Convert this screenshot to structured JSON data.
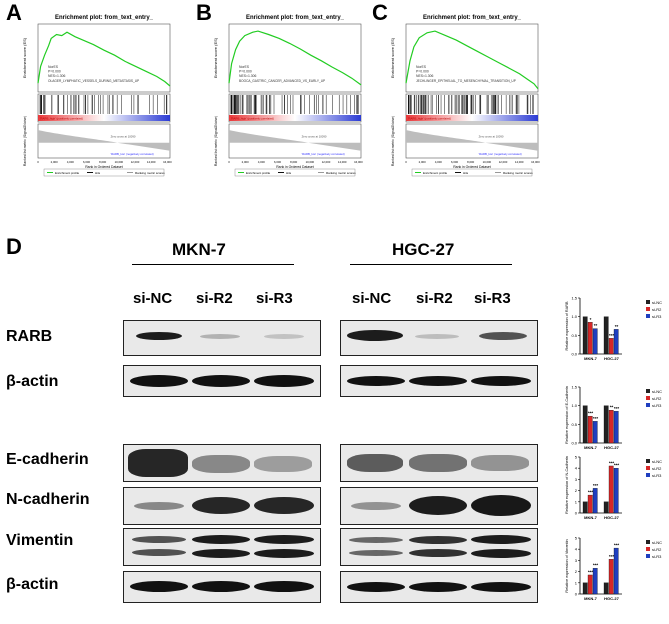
{
  "panels": {
    "A": {
      "letter": "A",
      "title": "Enrichment plot: from_text_entry_",
      "ylabel_top": "Enrichment score (ES)",
      "ylabel_bottom": "Ranked list metric (Signal2Noise)",
      "xlabel": "Rank in Ordered Dataset",
      "legend": [
        "Enrichment profile",
        "Hits",
        "Ranking metric scores"
      ],
      "stats": [
        "NorES",
        "P=0.000",
        "NES=1.306"
      ],
      "geneset": "OLAGER_LYMPHATIC_VESSELS_DURING_METASTASIS_UP",
      "pos_label": "'RARB_high' (positively correlated)",
      "neg_label": "'RARB_low' (negatively correlated)",
      "zero_label": "Zero cross at 10090",
      "xticks": [
        "0",
        "2,000",
        "4,000",
        "6,000",
        "8,000",
        "10,000",
        "12,000",
        "14,000",
        "16,000"
      ]
    },
    "B": {
      "letter": "B",
      "title": "Enrichment plot: from_text_entry_",
      "ylabel_top": "Enrichment score (ES)",
      "ylabel_bottom": "Ranked list metric (Signal2Noise)",
      "xlabel": "Rank in Ordered Dataset",
      "legend": [
        "Enrichment profile",
        "Hits",
        "Ranking metric scores"
      ],
      "stats": [
        "NorES",
        "P=0.000",
        "NES=1.306"
      ],
      "geneset": "BOOCA_GASTRIC_CANCER_ADVANCED_VS_EARLY_UP",
      "pos_label": "'RARB_high' (positively correlated)",
      "neg_label": "'RARB_low' (negatively correlated)",
      "zero_label": "Zero cross at 10090",
      "xticks": [
        "0",
        "2,000",
        "4,000",
        "6,000",
        "8,000",
        "10,000",
        "12,000",
        "14,000",
        "16,000"
      ]
    },
    "C": {
      "letter": "C",
      "title": "Enrichment plot: from_text_entry_",
      "ylabel_top": "Enrichment score (ES)",
      "ylabel_bottom": "Ranked list metric (Signal2Noise)",
      "xlabel": "Rank in Ordered Dataset",
      "legend": [
        "Enrichment profile",
        "Hits",
        "Ranking metric scores"
      ],
      "stats": [
        "NorES",
        "P=0.000",
        "NES=1.306"
      ],
      "geneset": "JECHLINGER_EPITHELIAL_TO_MESENCHYMAL_TRANSITION_UP",
      "pos_label": "'RARB_high' (positively correlated)",
      "neg_label": "'RARB_low' (negatively correlated)",
      "zero_label": "Zero cross at 10090",
      "xticks": [
        "0",
        "2,000",
        "4,000",
        "6,000",
        "8,000",
        "10,000",
        "12,000",
        "14,000",
        "16,000"
      ]
    }
  },
  "panel_d": {
    "letter": "D",
    "cell_lines": [
      "MKN-7",
      "HGC-27"
    ],
    "lanes": [
      "si-NC",
      "si-R2",
      "si-R3"
    ],
    "rows": [
      "RARB",
      "β-actin",
      "E-cadherin",
      "N-cadherin",
      "Vimentin",
      "β-actin"
    ]
  },
  "chart_data": [
    {
      "type": "bar",
      "ylabel": "Relative expression of RARB",
      "categories": [
        "MKN-7",
        "HGC-27"
      ],
      "ylim": [
        0,
        1.5
      ],
      "yticks": [
        "0.0",
        "0.5",
        "1.0",
        "1.5"
      ],
      "series": [
        {
          "name": "si-NC",
          "values": [
            1.0,
            1.0
          ]
        },
        {
          "name": "si-R2",
          "values": [
            0.85,
            0.42
          ]
        },
        {
          "name": "si-R3",
          "values": [
            0.68,
            0.66
          ]
        }
      ],
      "annotations": [
        [
          "",
          "*",
          "**"
        ],
        [
          "",
          "***",
          "**"
        ]
      ],
      "colors": [
        "#222222",
        "#d62728",
        "#1f3fbf"
      ]
    },
    {
      "type": "bar",
      "ylabel": "Relative expression of E-Cadherin",
      "categories": [
        "MKN-7",
        "HGC-27"
      ],
      "ylim": [
        0,
        1.5
      ],
      "yticks": [
        "0.0",
        "0.5",
        "1.0",
        "1.5"
      ],
      "series": [
        {
          "name": "si-NC",
          "values": [
            1.0,
            1.0
          ]
        },
        {
          "name": "si-R2",
          "values": [
            0.72,
            0.88
          ]
        },
        {
          "name": "si-R3",
          "values": [
            0.58,
            0.85
          ]
        }
      ],
      "annotations": [
        [
          "",
          "***",
          "***"
        ],
        [
          "",
          "**",
          "***"
        ]
      ],
      "colors": [
        "#222222",
        "#d62728",
        "#1f3fbf"
      ]
    },
    {
      "type": "bar",
      "ylabel": "Relative expression of N-Cadherin",
      "categories": [
        "MKN-7",
        "HGC-27"
      ],
      "ylim": [
        0,
        5
      ],
      "yticks": [
        "0",
        "1",
        "2",
        "3",
        "4",
        "5"
      ],
      "series": [
        {
          "name": "si-NC",
          "values": [
            1.0,
            1.0
          ]
        },
        {
          "name": "si-R2",
          "values": [
            1.6,
            4.2
          ]
        },
        {
          "name": "si-R3",
          "values": [
            2.2,
            4.0
          ]
        }
      ],
      "annotations": [
        [
          "",
          "***",
          "***"
        ],
        [
          "",
          "***",
          "***"
        ]
      ],
      "colors": [
        "#222222",
        "#d62728",
        "#1f3fbf"
      ]
    },
    {
      "type": "bar",
      "ylabel": "Relative expression of Vimentin",
      "categories": [
        "MKN-7",
        "HGC-27"
      ],
      "ylim": [
        0,
        5
      ],
      "yticks": [
        "0",
        "1",
        "2",
        "3",
        "4",
        "5"
      ],
      "series": [
        {
          "name": "si-NC",
          "values": [
            1.0,
            1.0
          ]
        },
        {
          "name": "si-R2",
          "values": [
            1.7,
            3.1
          ]
        },
        {
          "name": "si-R3",
          "values": [
            2.3,
            4.1
          ]
        }
      ],
      "annotations": [
        [
          "",
          "***",
          "***"
        ],
        [
          "",
          "***",
          "***"
        ]
      ],
      "colors": [
        "#222222",
        "#d62728",
        "#1f3fbf"
      ]
    }
  ]
}
